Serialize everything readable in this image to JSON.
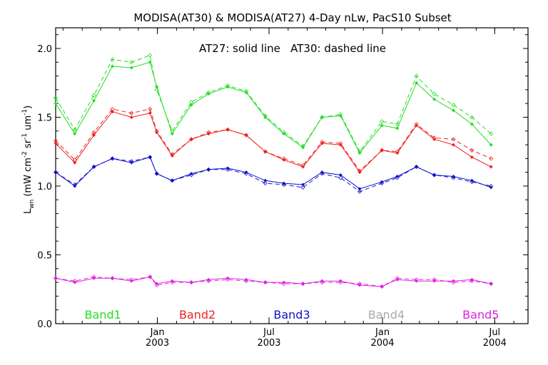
{
  "chart_data": {
    "type": "line",
    "title": "MODISA(AT30) & MODISA(AT27) 4-Day nLw, PacS10 Subset",
    "annotation": "AT27: solid line   AT30: dashed line",
    "ylabel": "L",
    "ylabel_sub": "wn",
    "ylabel_units_parts": [
      "(mW cm",
      "-2",
      " sr",
      "-1",
      " um",
      "-1",
      ")"
    ],
    "ylim": [
      0,
      2.15
    ],
    "yticks": [
      {
        "value": 0.0,
        "label": "0.0"
      },
      {
        "value": 0.5,
        "label": "0.5"
      },
      {
        "value": 1.0,
        "label": "1.0"
      },
      {
        "value": 1.5,
        "label": "1.5"
      },
      {
        "value": 2.0,
        "label": "2.0"
      }
    ],
    "xlim": [
      "2002-07-20",
      "2004-08-24"
    ],
    "xticks": [
      {
        "date": "2003-01-01",
        "month": "Jan",
        "year": "2003"
      },
      {
        "date": "2003-07-01",
        "month": "Jul",
        "year": "2003"
      },
      {
        "date": "2004-01-01",
        "month": "Jan",
        "year": "2004"
      },
      {
        "date": "2004-07-01",
        "month": "Jul",
        "year": "2004"
      }
    ],
    "minor_tick_months": 1,
    "x": [
      "2002-07-20",
      "2002-08-20",
      "2002-09-20",
      "2002-10-20",
      "2002-11-20",
      "2002-12-20",
      "2002-12-31",
      "2003-01-25",
      "2003-02-25",
      "2003-03-25",
      "2003-04-25",
      "2003-05-25",
      "2003-06-25",
      "2003-07-25",
      "2003-08-25",
      "2003-09-25",
      "2003-10-25",
      "2003-11-25",
      "2003-12-31",
      "2004-01-25",
      "2004-02-25",
      "2004-03-25",
      "2004-04-25",
      "2004-05-25",
      "2004-06-25",
      "2004-07-25",
      "2004-08-24"
    ],
    "series": [
      {
        "name": "Band1",
        "color": "#22dd22",
        "solid": [
          1.6,
          1.38,
          1.62,
          1.87,
          1.86,
          1.9,
          1.72,
          1.38,
          1.59,
          1.67,
          1.72,
          1.68,
          1.5,
          1.38,
          1.28,
          1.5,
          1.51,
          1.24,
          1.44,
          1.42,
          1.75,
          1.63,
          1.55,
          1.45,
          1.3,
          null,
          null
        ],
        "dashed": [
          1.64,
          1.41,
          1.66,
          1.92,
          1.9,
          1.95,
          1.7,
          1.4,
          1.61,
          1.68,
          1.73,
          1.69,
          1.51,
          1.39,
          1.29,
          1.5,
          1.52,
          1.25,
          1.47,
          1.45,
          1.8,
          1.67,
          1.59,
          1.5,
          1.38,
          null,
          null
        ]
      },
      {
        "name": "Band2",
        "color": "#ee2222",
        "solid": [
          1.31,
          1.17,
          1.37,
          1.54,
          1.5,
          1.53,
          1.39,
          1.22,
          1.34,
          1.38,
          1.41,
          1.37,
          1.25,
          1.19,
          1.14,
          1.31,
          1.3,
          1.1,
          1.26,
          1.24,
          1.44,
          1.34,
          1.3,
          1.21,
          1.14,
          null,
          null
        ],
        "dashed": [
          1.33,
          1.19,
          1.39,
          1.56,
          1.53,
          1.56,
          1.4,
          1.23,
          1.34,
          1.39,
          1.41,
          1.37,
          1.25,
          1.2,
          1.15,
          1.32,
          1.31,
          1.11,
          1.26,
          1.25,
          1.45,
          1.35,
          1.34,
          1.26,
          1.2,
          null,
          null
        ]
      },
      {
        "name": "Band3",
        "color": "#1111cc",
        "solid": [
          1.1,
          1.0,
          1.14,
          1.2,
          1.17,
          1.21,
          1.09,
          1.04,
          1.09,
          1.12,
          1.13,
          1.1,
          1.04,
          1.02,
          1.01,
          1.1,
          1.08,
          0.98,
          1.03,
          1.07,
          1.14,
          1.08,
          1.07,
          1.04,
          0.99,
          null,
          null
        ],
        "dashed": [
          1.1,
          1.01,
          1.14,
          1.2,
          1.18,
          1.21,
          1.09,
          1.04,
          1.08,
          1.12,
          1.12,
          1.09,
          1.02,
          1.01,
          0.99,
          1.09,
          1.06,
          0.96,
          1.02,
          1.06,
          1.14,
          1.08,
          1.06,
          1.03,
          1.0,
          null,
          null
        ]
      },
      {
        "name": "Band4",
        "color": "#aaaaaa",
        "solid": [],
        "dashed": []
      },
      {
        "name": "Band5",
        "color": "#dd22dd",
        "solid": [
          0.33,
          0.3,
          0.33,
          0.33,
          0.31,
          0.34,
          0.29,
          0.31,
          0.3,
          0.32,
          0.33,
          0.32,
          0.3,
          0.3,
          0.29,
          0.31,
          0.31,
          0.28,
          0.27,
          0.32,
          0.31,
          0.31,
          0.31,
          0.32,
          0.29,
          null,
          null
        ],
        "dashed": [
          0.33,
          0.31,
          0.34,
          0.33,
          0.32,
          0.34,
          0.28,
          0.3,
          0.3,
          0.31,
          0.32,
          0.31,
          0.3,
          0.29,
          0.29,
          0.3,
          0.3,
          0.29,
          0.27,
          0.33,
          0.32,
          0.32,
          0.3,
          0.31,
          0.29,
          null,
          null
        ]
      }
    ],
    "legend_placement": "bottom",
    "grid": false
  }
}
